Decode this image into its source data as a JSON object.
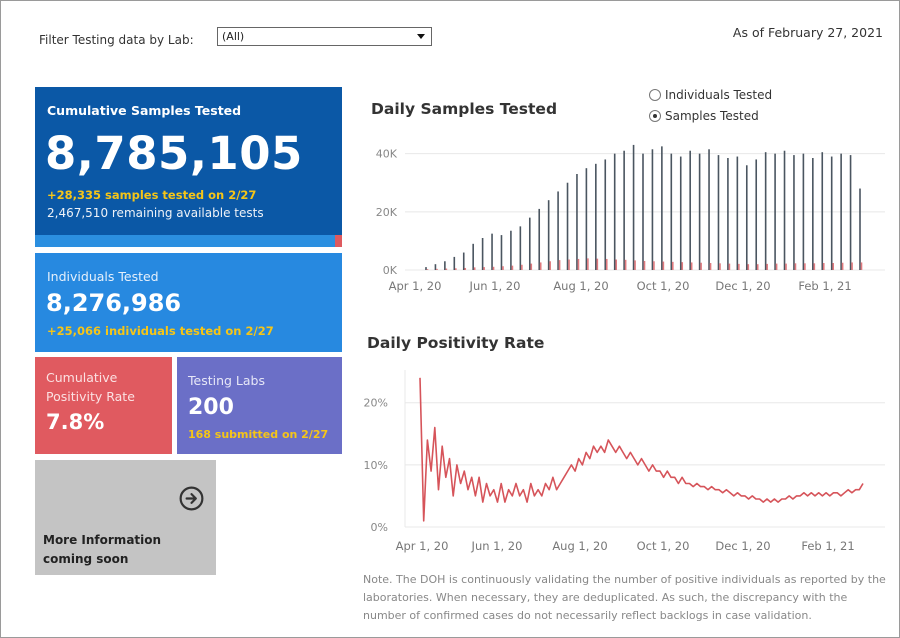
{
  "filter": {
    "label": "Filter Testing data by Lab:",
    "value": "(All)"
  },
  "as_of": "As of February 27, 2021",
  "cards": {
    "cumulative": {
      "title": "Cumulative Samples Tested",
      "value": "8,785,105",
      "increase": "+28,335 samples tested on 2/27",
      "remaining": "2,467,510 remaining available tests",
      "used_fraction": 0.92
    },
    "individuals": {
      "title": "Individuals Tested",
      "value": "8,276,986",
      "increase": "+25,066  individuals  tested on 2/27"
    },
    "positivity": {
      "title": "Cumulative Positivity Rate",
      "value": "7.8%"
    },
    "labs": {
      "title": "Testing Labs",
      "value": "200",
      "submitted": "168 submitted on 2/27"
    },
    "more": {
      "title": "More Information coming soon",
      "icon": "arrow-right-circle-icon"
    }
  },
  "toggle": {
    "options": [
      "Individuals Tested",
      "Samples Tested"
    ],
    "selected": "Samples Tested"
  },
  "note": "Note. The DOH is continuously validating the number of positive individuals as reported by the laboratories. When necessary, they are deduplicated. As such, the discrepancy with the number of confirmed cases do not necessarily reflect backlogs in case validation.",
  "colors": {
    "cumulative_bg": "#0b58a6",
    "individuals_bg": "#2789e0",
    "positivity_bg": "#e05a60",
    "labs_bg": "#6b6fc7",
    "more_bg": "#c4c4c4",
    "highlight_text": "#f5c518",
    "bar_color": "#4a5560",
    "positive_bar_color": "#e07a7e",
    "line_color": "#d6545a"
  },
  "chart_data": [
    {
      "type": "bar",
      "title": "Daily Samples Tested",
      "x_tick_labels": [
        "Apr 1, 20",
        "Jun 1, 20",
        "Aug 1, 20",
        "Oct 1, 20",
        "Dec 1, 20",
        "Feb 1, 21"
      ],
      "y_tick_labels": [
        "0K",
        "20K",
        "40K"
      ],
      "ylim": [
        0,
        44000
      ],
      "series": [
        {
          "values_weekly": [
            1000,
            2000,
            3000,
            4500,
            6000,
            9000,
            11000,
            12500,
            12000,
            13500,
            15000,
            18000,
            21000,
            24000,
            27000,
            30000,
            33000,
            35000,
            36500,
            38000,
            40000,
            41000,
            43000,
            40000,
            41500,
            42500,
            40000,
            39000,
            41000,
            40000,
            41500,
            39500,
            38500,
            39000,
            36000,
            38000,
            40500,
            40000,
            41000,
            39500,
            40000,
            38500,
            40500,
            39000,
            40000,
            39500,
            28000
          ]
        },
        {
          "name": "positive",
          "values_weekly": [
            300,
            400,
            500,
            600,
            700,
            900,
            1000,
            1100,
            1300,
            1500,
            1800,
            2200,
            2600,
            3000,
            3400,
            3600,
            3800,
            4000,
            3900,
            3800,
            3600,
            3500,
            3300,
            3100,
            3000,
            2900,
            2800,
            2700,
            2600,
            2500,
            2400,
            2300,
            2200,
            2100,
            2000,
            2000,
            2100,
            2200,
            2200,
            2300,
            2300,
            2300,
            2400,
            2400,
            2500,
            2600,
            2600
          ]
        }
      ]
    },
    {
      "type": "line",
      "title": "Daily Positivity Rate",
      "x_tick_labels": [
        "Apr 1, 20",
        "Jun 1, 20",
        "Aug 1, 20",
        "Oct 1, 20",
        "Dec 1, 20",
        "Feb 1, 21"
      ],
      "y_tick_labels": [
        "0%",
        "10%",
        "20%"
      ],
      "ylim": [
        0,
        24
      ],
      "series": [
        {
          "values_pct": [
            24,
            1,
            14,
            9,
            16,
            6,
            13,
            8,
            11,
            5,
            10,
            7,
            9,
            6,
            8,
            5,
            8,
            4,
            7,
            5,
            6,
            4,
            7,
            4,
            6,
            5,
            7,
            5,
            6,
            4,
            7,
            5,
            6,
            5,
            7,
            6,
            8,
            6,
            7,
            8,
            9,
            10,
            9,
            11,
            10,
            12,
            11,
            13,
            12,
            13,
            12,
            14,
            13,
            12,
            13,
            12,
            11,
            12,
            11,
            10,
            11,
            10,
            9,
            10,
            9,
            9,
            8,
            9,
            8,
            8,
            7,
            8,
            7,
            7,
            6.5,
            7,
            6.5,
            6.5,
            6,
            6.5,
            6,
            6,
            5.5,
            6,
            5.5,
            5,
            5.5,
            5,
            5,
            4.5,
            5,
            4.5,
            4.5,
            4,
            4.5,
            4,
            4.5,
            4,
            4.5,
            4.5,
            5,
            4.5,
            5,
            5,
            5.5,
            5,
            5.5,
            5,
            5.5,
            5,
            5.5,
            5,
            5.5,
            5.5,
            5,
            5.5,
            6,
            5.5,
            6,
            6,
            7
          ]
        }
      ]
    }
  ]
}
